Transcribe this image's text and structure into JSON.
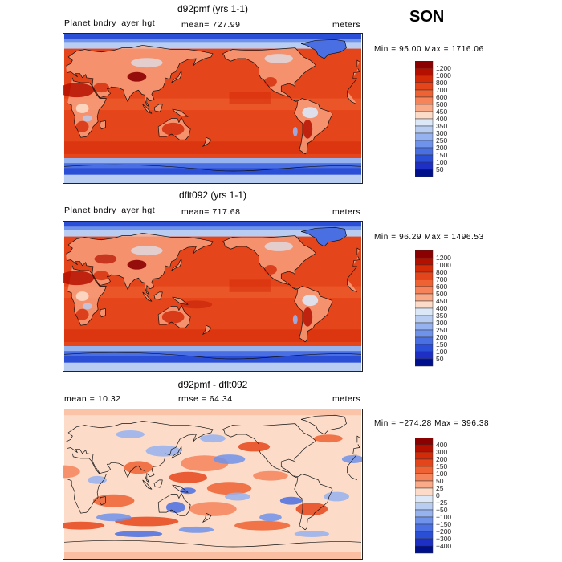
{
  "season": "SON",
  "panels": [
    {
      "title": "d92pmf (yrs 1-1)",
      "left": "Planet bndry layer hgt",
      "center": "mean=  727.99",
      "right": "meters",
      "minmax": "Min =   95.00 Max =  1716.06",
      "levels": [
        "1200",
        "1000",
        "800",
        "700",
        "600",
        "500",
        "450",
        "400",
        "350",
        "300",
        "250",
        "200",
        "150",
        "100",
        "50"
      ],
      "colors": [
        "#8b0000",
        "#b50f00",
        "#d42a08",
        "#e5451a",
        "#ee6233",
        "#f5845a",
        "#f9ab89",
        "#fcdcc8",
        "#dce8f7",
        "#b9cdf3",
        "#96b2ef",
        "#6f92ea",
        "#4a6fe3",
        "#2b4ed7",
        "#1e2fc5",
        "#000f8c"
      ],
      "diff": false
    },
    {
      "title": "dflt092 (yrs 1-1)",
      "left": "Planet bndry layer hgt",
      "center": "mean=  717.68",
      "right": "meters",
      "minmax": "Min =   96.29 Max =  1496.53",
      "levels": [
        "1200",
        "1000",
        "800",
        "700",
        "600",
        "500",
        "450",
        "400",
        "350",
        "300",
        "250",
        "200",
        "150",
        "100",
        "50"
      ],
      "colors": [
        "#8b0000",
        "#b50f00",
        "#d42a08",
        "#e5451a",
        "#ee6233",
        "#f5845a",
        "#f9ab89",
        "#fcdcc8",
        "#dce8f7",
        "#b9cdf3",
        "#96b2ef",
        "#6f92ea",
        "#4a6fe3",
        "#2b4ed7",
        "#1e2fc5",
        "#000f8c"
      ],
      "diff": false
    },
    {
      "title": "d92pmf - dflt092",
      "left": "mean =   10.32",
      "center": "rmse =   64.34",
      "right": "meters",
      "minmax": "Min = −274.28 Max =  396.38",
      "levels": [
        "400",
        "300",
        "200",
        "150",
        "100",
        "50",
        "25",
        "0",
        "−25",
        "−50",
        "−100",
        "−150",
        "−200",
        "−300",
        "−400"
      ],
      "colors": [
        "#8b0000",
        "#b50f00",
        "#d42a08",
        "#e5451a",
        "#ee6233",
        "#f5845a",
        "#f9ab89",
        "#fcdcc8",
        "#dce8f7",
        "#b9cdf3",
        "#96b2ef",
        "#6f92ea",
        "#4a6fe3",
        "#2b4ed7",
        "#1e2fc5",
        "#000f8c"
      ],
      "diff": true
    }
  ]
}
